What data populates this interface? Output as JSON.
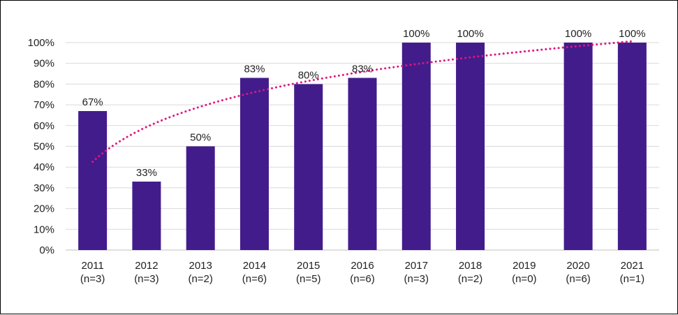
{
  "chart_data": {
    "type": "bar",
    "categories": [
      "2011",
      "2012",
      "2013",
      "2014",
      "2015",
      "2016",
      "2017",
      "2018",
      "2019",
      "2020",
      "2021"
    ],
    "category_sublabels": [
      "(n=3)",
      "(n=3)",
      "(n=2)",
      "(n=6)",
      "(n=5)",
      "(n=6)",
      "(n=3)",
      "(n=2)",
      "(n=0)",
      "(n=6)",
      "(n=1)"
    ],
    "values": [
      67,
      33,
      50,
      83,
      80,
      83,
      100,
      100,
      null,
      100,
      100
    ],
    "data_labels": [
      "67%",
      "33%",
      "50%",
      "83%",
      "80%",
      "83%",
      "100%",
      "100%",
      "",
      "100%",
      "100%"
    ],
    "ylim": [
      0,
      100
    ],
    "yticks": [
      0,
      10,
      20,
      30,
      40,
      50,
      60,
      70,
      80,
      90,
      100
    ],
    "ytick_labels": [
      "0%",
      "10%",
      "20%",
      "30%",
      "40%",
      "50%",
      "60%",
      "70%",
      "80%",
      "90%",
      "100%"
    ],
    "trendline": {
      "type": "logarithmic",
      "style": "dotted"
    },
    "grid": true,
    "legend": "none",
    "colors": {
      "bar": "#431C8C",
      "trend": "#E0157F",
      "grid": "#D9D9D9"
    }
  }
}
